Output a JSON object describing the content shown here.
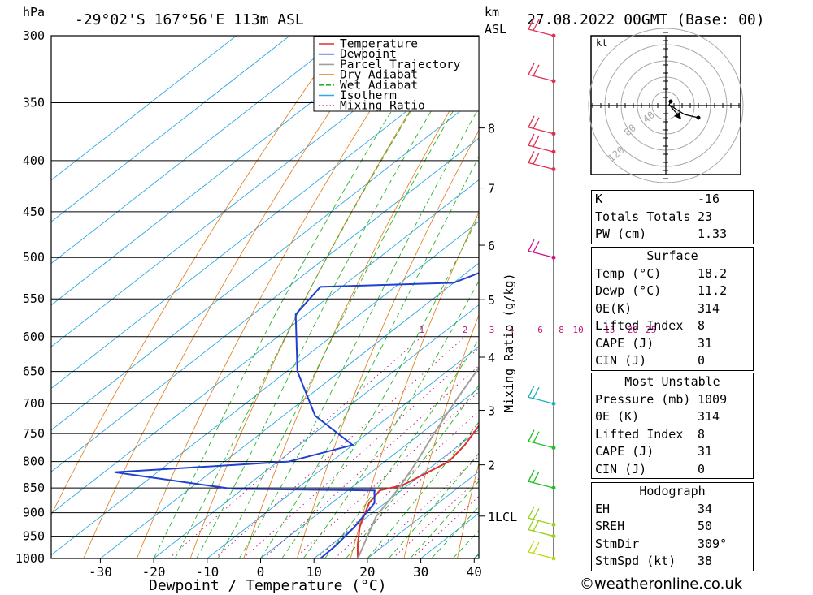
{
  "header": {
    "pressure_unit": "hPa",
    "location": "-29°02'S  167°56'E  113m  ASL",
    "height_unit": "km",
    "height_unit_sub": "ASL",
    "datetime": "27.08.2022  00GMT  (Base: 00)"
  },
  "chart_data": {
    "type": "skew-t",
    "xlabel": "Dewpoint / Temperature (°C)",
    "ylabel_right": "Mixing Ratio (g/kg)",
    "x_ticks": [
      -30,
      -20,
      -10,
      0,
      10,
      20,
      30,
      40
    ],
    "pressure_levels": [
      300,
      350,
      400,
      450,
      500,
      550,
      600,
      650,
      700,
      750,
      800,
      850,
      900,
      950,
      1000
    ],
    "height_km_ticks": [
      {
        "label": "8",
        "p": 371
      },
      {
        "label": "7",
        "p": 426
      },
      {
        "label": "6",
        "p": 486
      },
      {
        "label": "5",
        "p": 551
      },
      {
        "label": "4",
        "p": 629
      },
      {
        "label": "3",
        "p": 711
      },
      {
        "label": "2",
        "p": 806
      },
      {
        "label": "1LCL",
        "p": 907
      }
    ],
    "mixing_ratio_labels": [
      "1",
      "2",
      "3",
      "4",
      "6",
      "8",
      "10",
      "15",
      "20",
      "25"
    ],
    "legend": [
      "Temperature",
      "Dewpoint",
      "Parcel Trajectory",
      "Dry Adiabat",
      "Wet Adiabat",
      "Isotherm",
      "Mixing Ratio"
    ],
    "series": [
      {
        "name": "Temperature",
        "color": "#e03030",
        "points": [
          [
            18.2,
            1000
          ],
          [
            15,
            970
          ],
          [
            11,
            930
          ],
          [
            7,
            880
          ],
          [
            6,
            855
          ],
          [
            9,
            845
          ],
          [
            12,
            800
          ],
          [
            11,
            770
          ],
          [
            8,
            720
          ],
          [
            5,
            670
          ],
          [
            3,
            620
          ],
          [
            0,
            560
          ],
          [
            -2,
            540
          ],
          [
            2,
            530
          ],
          [
            -1,
            510
          ],
          [
            -4,
            480
          ],
          [
            -12,
            440
          ],
          [
            -17,
            410
          ],
          [
            -15,
            404
          ],
          [
            -16,
            390
          ],
          [
            -18,
            360
          ],
          [
            -22,
            330
          ],
          [
            -26,
            310
          ],
          [
            -30,
            300
          ]
        ]
      },
      {
        "name": "Dewpoint",
        "color": "#2040d0",
        "points": [
          [
            11.2,
            1000
          ],
          [
            11,
            970
          ],
          [
            10,
            930
          ],
          [
            8,
            880
          ],
          [
            5,
            855
          ],
          [
            -22,
            852
          ],
          [
            -48,
            820
          ],
          [
            -18,
            800
          ],
          [
            -10,
            770
          ],
          [
            -24,
            720
          ],
          [
            -38,
            650
          ],
          [
            -52,
            570
          ],
          [
            -54,
            535
          ],
          [
            -30,
            530
          ],
          [
            -25,
            505
          ],
          [
            -20,
            500
          ],
          [
            -18,
            470
          ],
          [
            -16,
            440
          ],
          [
            -14,
            418
          ],
          [
            -26,
            410
          ],
          [
            -34,
            398
          ],
          [
            -51,
            394
          ],
          [
            -35,
            385
          ],
          [
            -38,
            370
          ],
          [
            -45,
            345
          ],
          [
            -53,
            322
          ],
          [
            -53,
            312
          ],
          [
            -50,
            300
          ]
        ]
      },
      {
        "name": "Parcel Trajectory",
        "color": "#a0a0a0",
        "points": [
          [
            18.2,
            1000
          ],
          [
            11.5,
            907
          ],
          [
            9,
            850
          ],
          [
            6,
            800
          ],
          [
            2.5,
            750
          ],
          [
            -1,
            700
          ],
          [
            -4.5,
            650
          ],
          [
            -8.5,
            600
          ],
          [
            -13,
            550
          ],
          [
            -18,
            500
          ],
          [
            -24,
            450
          ],
          [
            -31,
            400
          ],
          [
            -39,
            350
          ],
          [
            -49,
            300
          ]
        ]
      }
    ],
    "wind_barbs": [
      {
        "p": 300,
        "color": "#e03050"
      },
      {
        "p": 333,
        "color": "#e03050"
      },
      {
        "p": 376,
        "color": "#e03050"
      },
      {
        "p": 392,
        "color": "#e03050"
      },
      {
        "p": 408,
        "color": "#e03050"
      },
      {
        "p": 500,
        "color": "#d0108a"
      },
      {
        "p": 700,
        "color": "#20b0b8"
      },
      {
        "p": 775,
        "color": "#20c020"
      },
      {
        "p": 850,
        "color": "#20c020"
      },
      {
        "p": 925,
        "color": "#9ad020"
      },
      {
        "p": 950,
        "color": "#9ad020"
      },
      {
        "p": 1000,
        "color": "#c0d810"
      }
    ],
    "hodograph": {
      "unit_label": "kt",
      "ring_labels": [
        "40",
        "80",
        "120"
      ]
    }
  },
  "indices": {
    "general": [
      {
        "label": "K",
        "value": "-16"
      },
      {
        "label": "Totals Totals",
        "value": "23"
      },
      {
        "label": "PW (cm)",
        "value": "1.33"
      }
    ],
    "surface": {
      "title": "Surface",
      "rows": [
        {
          "label": "Temp (°C)",
          "value": "18.2"
        },
        {
          "label": "Dewp (°C)",
          "value": "11.2"
        },
        {
          "label": "θE(K)",
          "value": "314"
        },
        {
          "label": "Lifted Index",
          "value": "8"
        },
        {
          "label": "CAPE (J)",
          "value": "31"
        },
        {
          "label": "CIN (J)",
          "value": "0"
        }
      ]
    },
    "most_unstable": {
      "title": "Most Unstable",
      "rows": [
        {
          "label": "Pressure (mb)",
          "value": "1009"
        },
        {
          "label": "θE (K)",
          "value": "314"
        },
        {
          "label": "Lifted Index",
          "value": "8"
        },
        {
          "label": "CAPE (J)",
          "value": "31"
        },
        {
          "label": "CIN (J)",
          "value": "0"
        }
      ]
    },
    "hodograph": {
      "title": "Hodograph",
      "rows": [
        {
          "label": "EH",
          "value": "34"
        },
        {
          "label": "SREH",
          "value": "50"
        },
        {
          "label": "StmDir",
          "value": "309°"
        },
        {
          "label": "StmSpd (kt)",
          "value": "38"
        }
      ]
    }
  },
  "credit": "©weatheronline.co.uk"
}
